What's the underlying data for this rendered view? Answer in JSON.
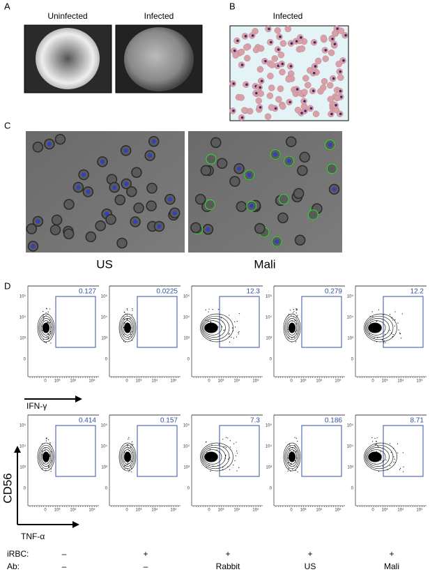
{
  "panel_a": {
    "label": "A",
    "captions": [
      "Uninfected",
      "Infected"
    ]
  },
  "panel_b": {
    "label": "B",
    "caption": "Infected"
  },
  "panel_c": {
    "label": "C",
    "captions": [
      "US",
      "Mali"
    ]
  },
  "panel_d": {
    "label": "D",
    "y_axis_label": "CD56",
    "x_axis_labels": [
      "IFN-γ",
      "TNF-α"
    ],
    "ticks": [
      "0",
      "10³",
      "10⁴",
      "10⁵"
    ],
    "gates": [
      [
        0.127,
        0.0225,
        12.3,
        0.279,
        12.2
      ],
      [
        0.414,
        0.157,
        7.3,
        0.186,
        8.71
      ]
    ],
    "conditions": [
      {
        "label": "iRBC:",
        "values": [
          "–",
          "+",
          "+",
          "+",
          "+"
        ]
      },
      {
        "label": "Ab:",
        "values": [
          "–",
          "–",
          "Rabbit",
          "US",
          "Mali"
        ]
      }
    ]
  }
}
